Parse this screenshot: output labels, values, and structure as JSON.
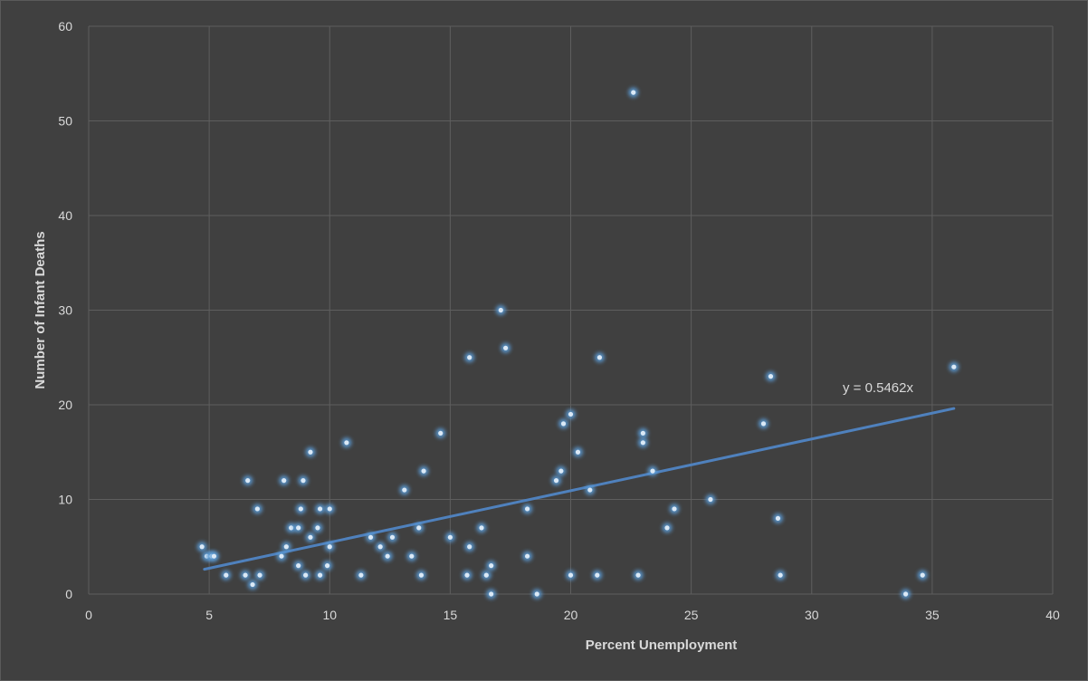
{
  "chart_data": {
    "type": "scatter",
    "xlabel": "Percent Unemployment",
    "ylabel": "Number of Infant Deaths",
    "xlim": [
      0,
      40
    ],
    "ylim": [
      0,
      60
    ],
    "xticks": [
      0,
      5,
      10,
      15,
      20,
      25,
      30,
      35,
      40
    ],
    "yticks": [
      0,
      10,
      20,
      30,
      40,
      50,
      60
    ],
    "grid": true,
    "trendline": {
      "slope": 0.5462,
      "intercept": 0,
      "x_range": [
        4.8,
        35.9
      ],
      "label": "y = 0.5462x"
    },
    "colors": {
      "background": "#404040",
      "grid": "#5e5e5e",
      "point": "#9dc3e6",
      "glow": "#5b9bd5",
      "trendline": "#4f81bd",
      "text": "#d9d9d9"
    },
    "points": [
      [
        4.7,
        5
      ],
      [
        4.9,
        4
      ],
      [
        5.1,
        4
      ],
      [
        5.2,
        4
      ],
      [
        5.7,
        2
      ],
      [
        6.5,
        2
      ],
      [
        6.6,
        12
      ],
      [
        6.8,
        1
      ],
      [
        7.0,
        9
      ],
      [
        7.1,
        2
      ],
      [
        8.0,
        4
      ],
      [
        8.1,
        12
      ],
      [
        8.2,
        5
      ],
      [
        8.4,
        7
      ],
      [
        8.7,
        7
      ],
      [
        8.7,
        3
      ],
      [
        8.8,
        9
      ],
      [
        8.9,
        12
      ],
      [
        9.0,
        2
      ],
      [
        9.2,
        15
      ],
      [
        9.2,
        6
      ],
      [
        9.5,
        7
      ],
      [
        9.6,
        9
      ],
      [
        9.6,
        2
      ],
      [
        9.9,
        3
      ],
      [
        10.0,
        9
      ],
      [
        10.0,
        5
      ],
      [
        10.7,
        16
      ],
      [
        11.3,
        2
      ],
      [
        11.7,
        6
      ],
      [
        12.1,
        5
      ],
      [
        12.4,
        4
      ],
      [
        12.6,
        6
      ],
      [
        13.1,
        11
      ],
      [
        13.4,
        4
      ],
      [
        13.7,
        7
      ],
      [
        13.8,
        2
      ],
      [
        13.9,
        13
      ],
      [
        14.6,
        17
      ],
      [
        15.0,
        6
      ],
      [
        15.7,
        2
      ],
      [
        15.8,
        5
      ],
      [
        15.8,
        25
      ],
      [
        16.3,
        7
      ],
      [
        16.5,
        2
      ],
      [
        16.7,
        3
      ],
      [
        16.7,
        0
      ],
      [
        17.1,
        30
      ],
      [
        17.3,
        26
      ],
      [
        18.2,
        9
      ],
      [
        18.2,
        4
      ],
      [
        18.6,
        0
      ],
      [
        19.4,
        12
      ],
      [
        19.6,
        13
      ],
      [
        19.7,
        18
      ],
      [
        20.0,
        19
      ],
      [
        20.0,
        2
      ],
      [
        20.3,
        15
      ],
      [
        20.8,
        11
      ],
      [
        21.1,
        2
      ],
      [
        21.2,
        25
      ],
      [
        22.6,
        53
      ],
      [
        22.8,
        2
      ],
      [
        23.0,
        17
      ],
      [
        23.0,
        16
      ],
      [
        23.4,
        13
      ],
      [
        24.0,
        7
      ],
      [
        24.3,
        9
      ],
      [
        25.8,
        10
      ],
      [
        28.0,
        18
      ],
      [
        28.3,
        23
      ],
      [
        28.6,
        8
      ],
      [
        28.7,
        2
      ],
      [
        33.9,
        0
      ],
      [
        34.6,
        2
      ],
      [
        35.9,
        24
      ]
    ]
  }
}
